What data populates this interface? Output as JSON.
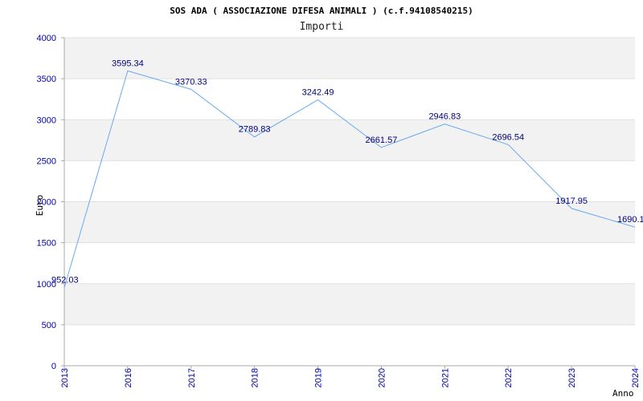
{
  "chart_data": {
    "type": "line",
    "title": "SOS ADA ( ASSOCIAZIONE DIFESA ANIMALI ) (c.f.94108540215)",
    "subtitle": "Importi",
    "xlabel": "Anno",
    "ylabel": "Euro",
    "ylim": [
      0,
      4000
    ],
    "yticks": [
      "0",
      "500",
      "1000",
      "1500",
      "2000",
      "2500",
      "3000",
      "3500",
      "4000"
    ],
    "categories": [
      "2013",
      "2016",
      "2017",
      "2018",
      "2019",
      "2020",
      "2021",
      "2022",
      "2023",
      "2024"
    ],
    "values": [
      952.03,
      3595.34,
      3370.33,
      2789.83,
      3242.49,
      2661.57,
      2946.83,
      2696.54,
      1917.95,
      1690.1
    ],
    "labels": [
      "952.03",
      "3595.34",
      "3370.33",
      "2789.83",
      "3242.49",
      "2661.57",
      "2946.83",
      "2696.54",
      "1917.95",
      "1690.1"
    ],
    "colors": {
      "line": "#66aaee",
      "band": "#f2f2f2",
      "axis": "#aaaaaa",
      "tick_text": "#0000aa",
      "label_text": "#000080"
    }
  }
}
